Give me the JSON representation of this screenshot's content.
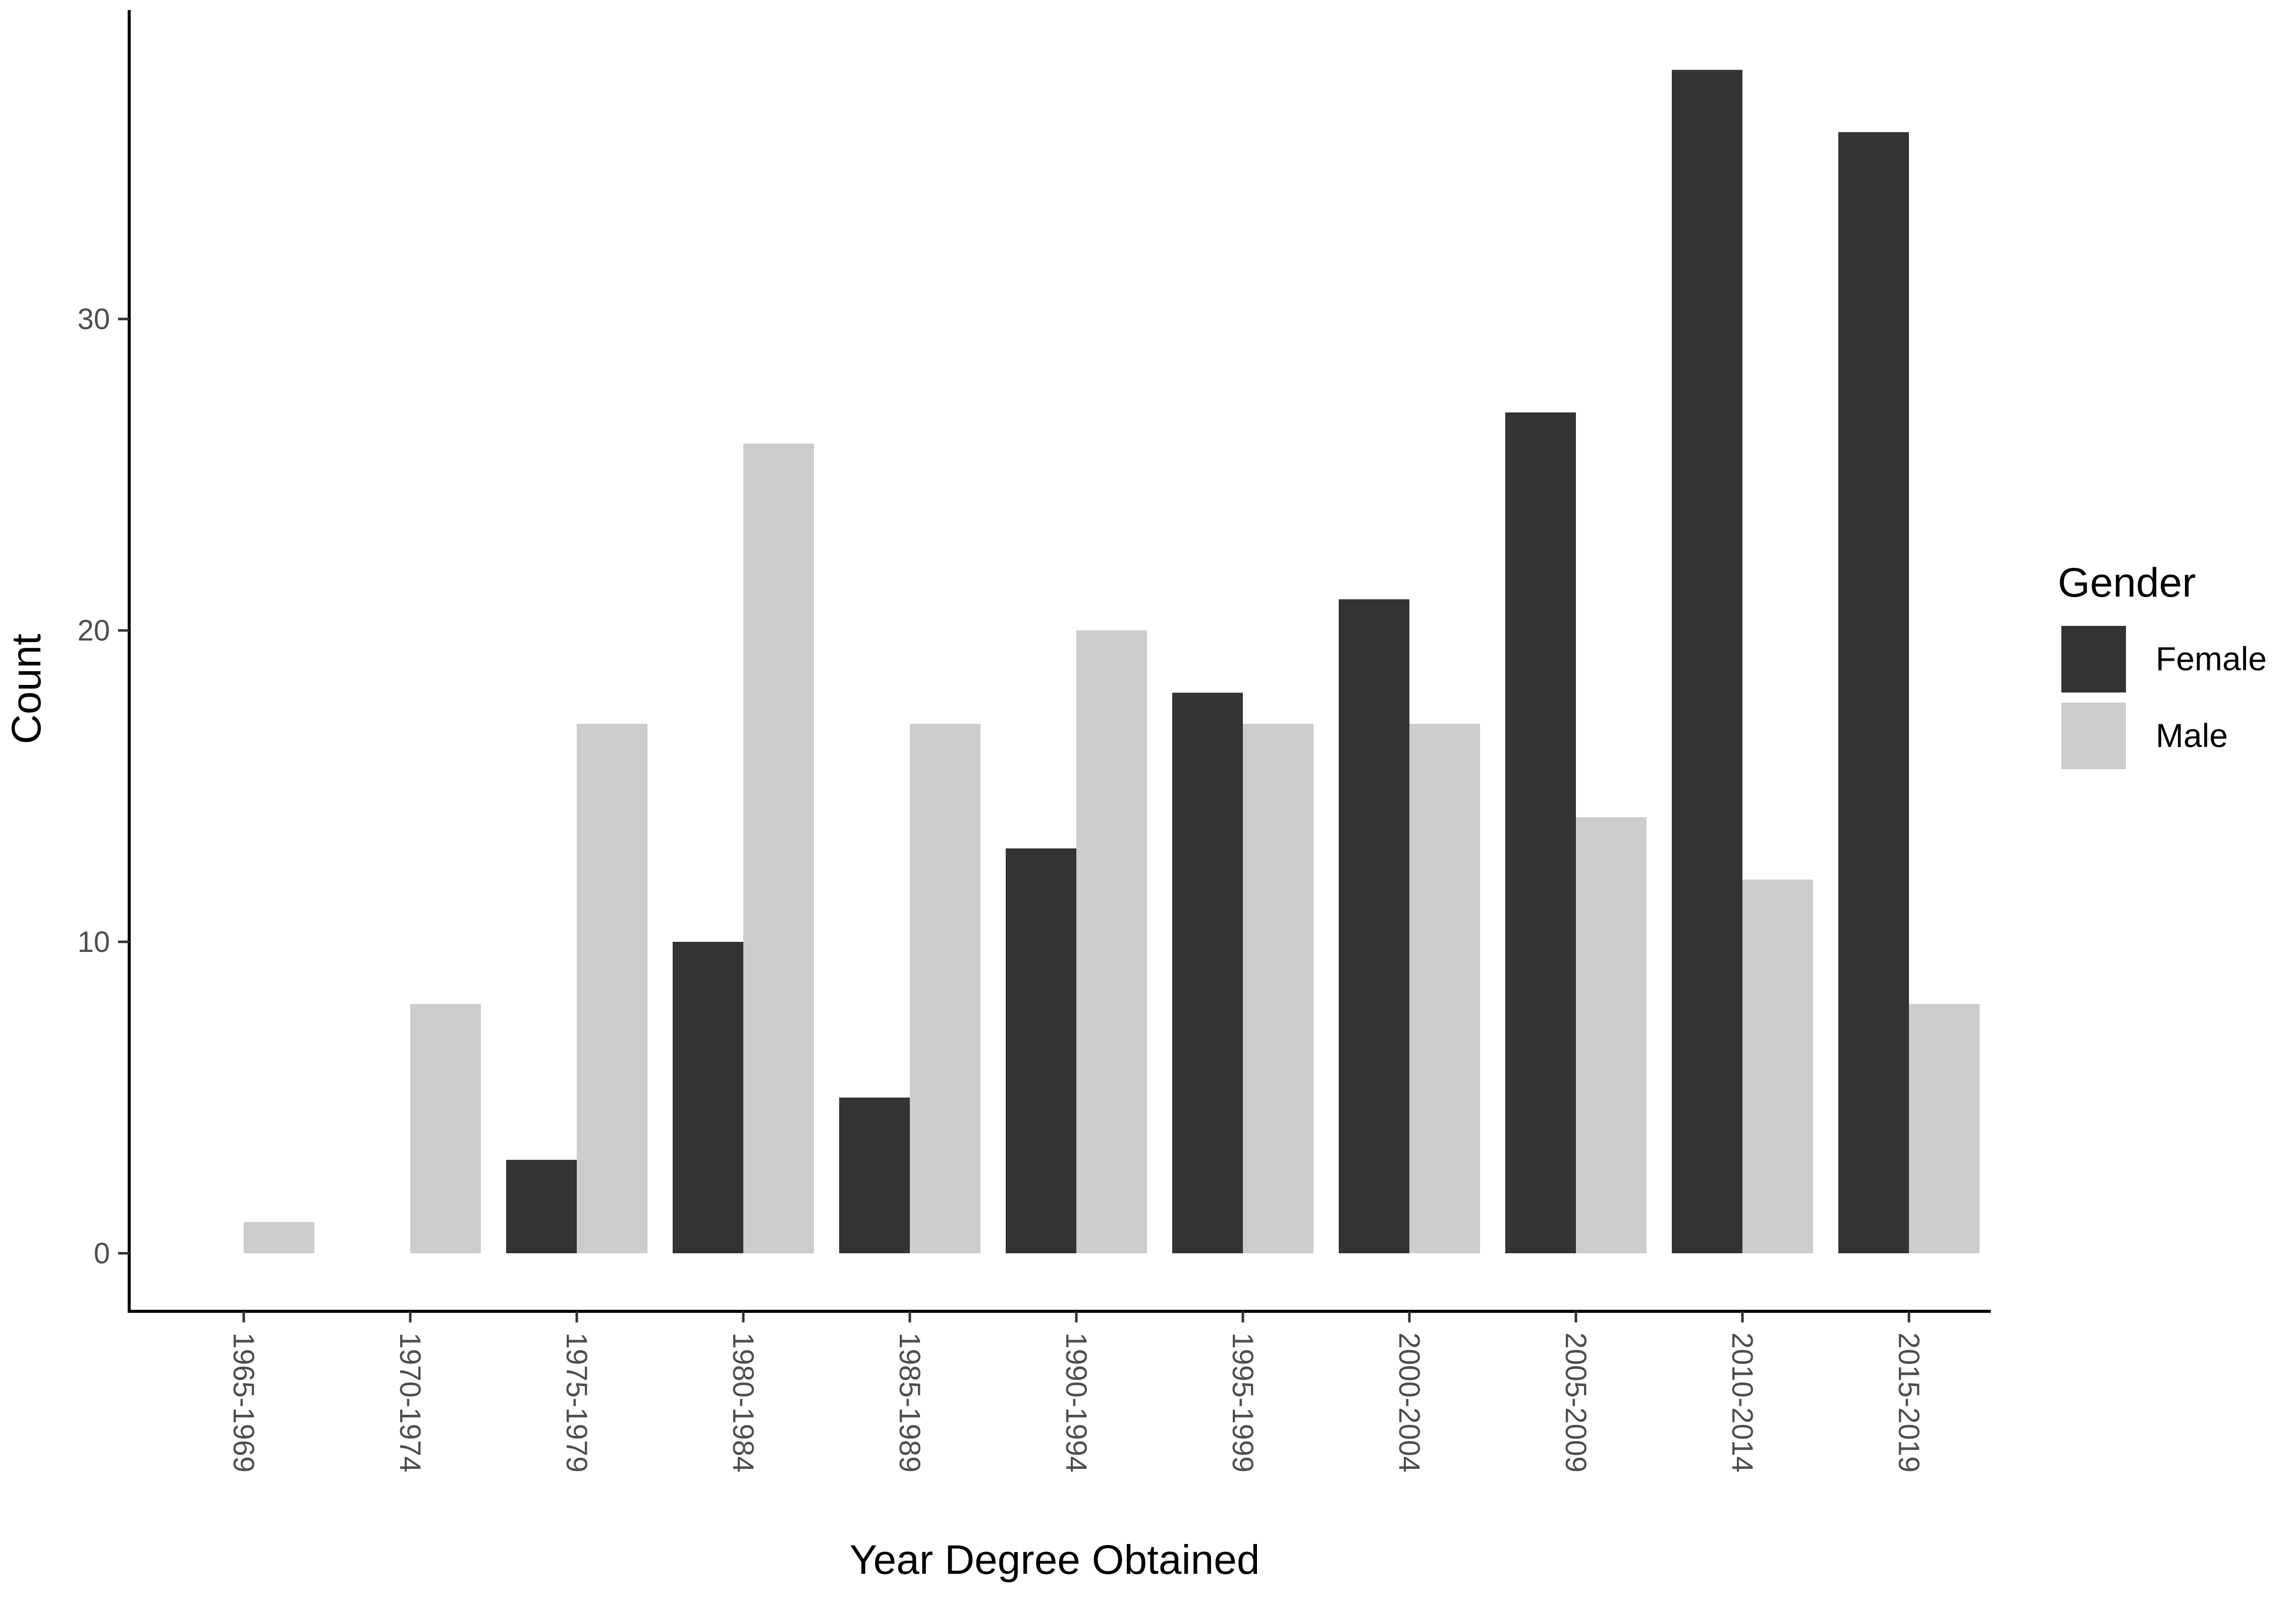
{
  "chart_data": {
    "type": "bar",
    "xlabel": "Year Degree Obtained",
    "ylabel": "Count",
    "ylim": [
      -1.8,
      40
    ],
    "yticks": [
      0,
      10,
      20,
      30
    ],
    "grid": false,
    "legend": {
      "title": "Gender",
      "placement": "right"
    },
    "categories": [
      "1965-1969",
      "1970-1974",
      "1975-1979",
      "1980-1984",
      "1985-1989",
      "1990-1994",
      "1995-1999",
      "2000-2004",
      "2005-2009",
      "2010-2014",
      "2015-2019"
    ],
    "series": [
      {
        "name": "Female",
        "color": "#333333",
        "values": [
          null,
          null,
          3,
          10,
          5,
          13,
          18,
          21,
          27,
          38,
          36
        ]
      },
      {
        "name": "Male",
        "color": "#cccccc",
        "values": [
          1,
          8,
          17,
          26,
          17,
          20,
          17,
          17,
          14,
          12,
          8
        ]
      }
    ]
  }
}
